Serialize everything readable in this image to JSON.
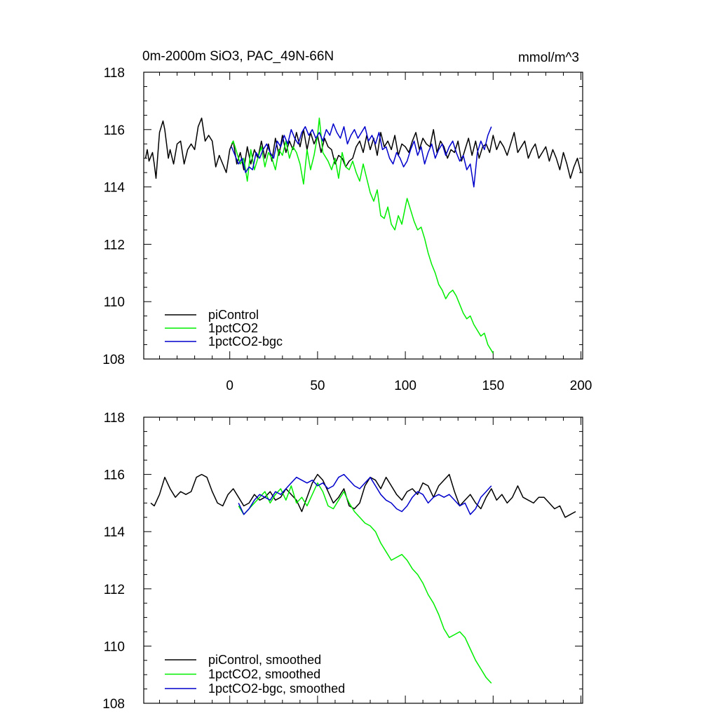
{
  "chart_data": [
    {
      "type": "line",
      "title": "0m-2000m SiO3, PAC_49N-66N",
      "units": "mmol/m^3",
      "xlim": [
        -49,
        201
      ],
      "ylim": [
        108,
        118
      ],
      "xticks": [
        0,
        50,
        100,
        150,
        200
      ],
      "xtick_labels": [
        "0",
        "50",
        "100",
        "150",
        "200"
      ],
      "yticks": [
        108,
        110,
        112,
        114,
        116,
        118
      ],
      "ytick_labels": [
        "108",
        "110",
        "112",
        "114",
        "116",
        "118"
      ],
      "legend_position": "bottom-left",
      "series": [
        {
          "name": "piControl",
          "color": "#000000",
          "x": [
            -48,
            -47,
            -46,
            -44,
            -43,
            -42,
            -40,
            -38,
            -37,
            -35,
            -34,
            -32,
            -30,
            -28,
            -26,
            -24,
            -22,
            -20,
            -18,
            -16,
            -14,
            -12,
            -10,
            -8,
            -6,
            -4,
            -2,
            0,
            2,
            4,
            6,
            8,
            10,
            12,
            14,
            16,
            18,
            20,
            22,
            24,
            26,
            28,
            30,
            32,
            34,
            36,
            38,
            40,
            42,
            44,
            46,
            48,
            50,
            52,
            54,
            56,
            58,
            60,
            62,
            64,
            66,
            68,
            70,
            72,
            74,
            76,
            78,
            80,
            82,
            84,
            86,
            88,
            90,
            92,
            94,
            96,
            98,
            100,
            102,
            104,
            106,
            108,
            110,
            112,
            114,
            116,
            118,
            120,
            122,
            124,
            126,
            128,
            130,
            132,
            134,
            136,
            138,
            140,
            142,
            144,
            146,
            148,
            150,
            152,
            154,
            156,
            158,
            160,
            162,
            164,
            166,
            168,
            170,
            172,
            174,
            176,
            178,
            180,
            182,
            184,
            186,
            188,
            190,
            192,
            194,
            196,
            198,
            200
          ],
          "y": [
            115.0,
            115.3,
            114.9,
            115.2,
            114.8,
            114.3,
            115.9,
            116.3,
            116.0,
            115.0,
            115.3,
            114.8,
            115.5,
            115.6,
            114.8,
            115.3,
            115.5,
            115.3,
            116.1,
            116.4,
            115.6,
            115.8,
            115.6,
            114.7,
            115.1,
            114.8,
            114.5,
            115.3,
            115.6,
            114.8,
            115.2,
            114.6,
            115.4,
            114.8,
            115.3,
            115.0,
            115.6,
            115.0,
            115.5,
            114.9,
            115.7,
            115.1,
            115.8,
            115.2,
            115.6,
            115.3,
            115.9,
            115.4,
            116.0,
            115.3,
            115.9,
            115.5,
            115.8,
            115.2,
            115.7,
            115.4,
            115.3,
            114.8,
            115.1,
            115.0,
            114.7,
            114.9,
            115.0,
            115.4,
            115.6,
            115.2,
            115.8,
            115.3,
            115.7,
            115.1,
            115.9,
            115.4,
            115.6,
            115.3,
            115.8,
            115.1,
            115.5,
            115.4,
            115.2,
            115.6,
            115.9,
            115.3,
            115.7,
            115.5,
            115.4,
            116.0,
            115.2,
            115.6,
            115.4,
            115.0,
            115.3,
            115.2,
            115.6,
            114.9,
            115.3,
            115.7,
            115.1,
            115.6,
            115.0,
            115.4,
            115.5,
            115.2,
            115.8,
            115.3,
            115.6,
            115.4,
            115.1,
            115.5,
            115.9,
            115.2,
            115.4,
            115.6,
            115.0,
            115.3,
            115.5,
            115.0,
            115.2,
            115.4,
            114.9,
            115.3,
            115.0,
            114.6,
            115.2,
            114.8,
            114.3,
            114.7,
            115.0,
            114.5
          ],
          "line_width": 1.5
        },
        {
          "name": "1pctCO2",
          "color": "#00ee00",
          "x": [
            1,
            2,
            4,
            6,
            8,
            10,
            12,
            14,
            16,
            18,
            20,
            22,
            24,
            26,
            28,
            30,
            32,
            34,
            36,
            38,
            40,
            42,
            44,
            46,
            48,
            50,
            51,
            53,
            56,
            58,
            60,
            62,
            64,
            66,
            68,
            70,
            72,
            74,
            76,
            78,
            80,
            82,
            84,
            86,
            88,
            90,
            92,
            94,
            96,
            98,
            100,
            101,
            103,
            105,
            107,
            109,
            111,
            113,
            115,
            117,
            119,
            121,
            123,
            125,
            127,
            129,
            131,
            133,
            135,
            137,
            139,
            141,
            143,
            145,
            147,
            149,
            150
          ],
          "y": [
            115.5,
            115.6,
            115.2,
            114.8,
            115.0,
            114.2,
            115.3,
            114.6,
            115.0,
            115.4,
            114.7,
            115.2,
            115.0,
            114.6,
            115.3,
            115.1,
            115.6,
            115.0,
            115.4,
            115.2,
            114.8,
            114.1,
            115.3,
            114.6,
            115.1,
            115.8,
            116.4,
            115.2,
            114.9,
            114.6,
            115.0,
            114.3,
            115.2,
            114.7,
            114.6,
            114.9,
            114.5,
            114.2,
            114.8,
            114.3,
            113.8,
            113.5,
            113.9,
            113.0,
            112.9,
            113.3,
            112.7,
            112.5,
            113.0,
            112.7,
            113.3,
            113.6,
            113.2,
            112.8,
            112.5,
            112.6,
            112.2,
            111.7,
            111.3,
            111.0,
            110.6,
            110.4,
            110.1,
            110.3,
            110.4,
            110.2,
            109.9,
            109.6,
            109.4,
            109.5,
            109.2,
            109.0,
            108.8,
            108.9,
            108.5,
            108.3,
            108.2
          ],
          "line_width": 1.5
        },
        {
          "name": "1pctCO2-bgc",
          "color": "#0000cc",
          "x": [
            1,
            3,
            5,
            7,
            9,
            11,
            13,
            15,
            17,
            19,
            21,
            23,
            25,
            27,
            29,
            31,
            33,
            35,
            37,
            39,
            41,
            43,
            45,
            47,
            49,
            51,
            53,
            55,
            57,
            59,
            61,
            63,
            65,
            67,
            69,
            71,
            73,
            75,
            77,
            79,
            81,
            83,
            85,
            87,
            89,
            91,
            93,
            95,
            97,
            99,
            101,
            103,
            105,
            107,
            109,
            111,
            113,
            115,
            117,
            119,
            121,
            123,
            125,
            127,
            129,
            131,
            133,
            135,
            137,
            139,
            141,
            143,
            145,
            147,
            149
          ],
          "y": [
            115.4,
            115.1,
            114.8,
            115.0,
            114.5,
            114.7,
            114.6,
            115.2,
            115.0,
            115.3,
            115.5,
            115.2,
            115.0,
            115.6,
            115.4,
            115.8,
            115.5,
            116.0,
            115.7,
            115.5,
            115.9,
            116.1,
            115.8,
            116.0,
            115.7,
            115.9,
            115.6,
            116.0,
            115.8,
            116.2,
            115.9,
            115.7,
            116.1,
            115.5,
            115.8,
            116.0,
            115.7,
            115.9,
            116.1,
            115.6,
            115.8,
            115.5,
            115.9,
            115.3,
            115.4,
            115.0,
            114.8,
            115.2,
            115.0,
            114.7,
            114.9,
            115.3,
            115.6,
            115.1,
            115.4,
            114.8,
            115.2,
            115.5,
            115.0,
            115.3,
            115.5,
            115.1,
            115.4,
            115.6,
            115.2,
            114.9,
            115.1,
            114.6,
            114.8,
            114.0,
            115.2,
            115.6,
            115.3,
            115.8,
            116.1
          ],
          "line_width": 1.5
        }
      ]
    },
    {
      "type": "line",
      "title": "",
      "units": "",
      "xlim": [
        -49,
        201
      ],
      "ylim": [
        108,
        118
      ],
      "xticks": [
        0,
        50,
        100,
        150,
        200
      ],
      "xtick_labels": [],
      "yticks": [
        108,
        110,
        112,
        114,
        116,
        118
      ],
      "ytick_labels": [
        "108",
        "110",
        "112",
        "114",
        "116",
        "118"
      ],
      "legend_position": "bottom-left",
      "series": [
        {
          "name": "piControl, smoothed",
          "color": "#000000",
          "x": [
            -45,
            -43,
            -40,
            -37,
            -34,
            -31,
            -28,
            -25,
            -22,
            -19,
            -16,
            -13,
            -10,
            -7,
            -4,
            -1,
            2,
            5,
            8,
            11,
            14,
            17,
            20,
            23,
            26,
            29,
            32,
            35,
            38,
            41,
            44,
            47,
            50,
            53,
            56,
            59,
            62,
            65,
            68,
            71,
            74,
            77,
            80,
            83,
            86,
            89,
            92,
            95,
            98,
            101,
            104,
            107,
            110,
            113,
            116,
            119,
            122,
            125,
            128,
            131,
            134,
            137,
            140,
            143,
            146,
            149,
            152,
            155,
            158,
            161,
            164,
            167,
            170,
            173,
            176,
            179,
            182,
            185,
            188,
            191,
            194,
            197
          ],
          "y": [
            115.0,
            114.9,
            115.3,
            115.9,
            115.5,
            115.2,
            115.4,
            115.3,
            115.4,
            115.9,
            116.0,
            115.9,
            115.4,
            115.0,
            114.9,
            115.3,
            115.5,
            115.2,
            114.9,
            115.0,
            115.3,
            115.1,
            115.2,
            115.4,
            115.1,
            115.2,
            115.5,
            115.3,
            115.1,
            114.7,
            115.2,
            115.7,
            116.0,
            115.8,
            115.4,
            115.0,
            115.2,
            115.5,
            114.9,
            114.8,
            115.0,
            115.6,
            115.9,
            115.8,
            115.5,
            115.9,
            115.6,
            115.3,
            115.1,
            115.4,
            115.5,
            115.3,
            115.7,
            115.6,
            115.2,
            115.6,
            115.8,
            116.0,
            115.4,
            114.9,
            115.1,
            115.3,
            115.0,
            114.8,
            115.2,
            115.5,
            115.1,
            115.3,
            115.0,
            115.2,
            115.6,
            115.2,
            115.1,
            115.0,
            115.2,
            115.2,
            115.0,
            114.8,
            114.9,
            114.5,
            114.6,
            114.7
          ],
          "line_width": 1.5
        },
        {
          "name": "1pctCO2, smoothed",
          "color": "#00ee00",
          "x": [
            5,
            8,
            11,
            14,
            17,
            20,
            23,
            26,
            29,
            32,
            35,
            38,
            41,
            44,
            47,
            50,
            53,
            56,
            59,
            62,
            65,
            68,
            71,
            74,
            77,
            80,
            83,
            86,
            89,
            92,
            95,
            98,
            101,
            104,
            107,
            110,
            113,
            116,
            119,
            122,
            125,
            128,
            131,
            134,
            137,
            140,
            143,
            146,
            149
          ],
          "y": [
            114.9,
            114.6,
            114.8,
            115.0,
            115.2,
            115.4,
            115.0,
            115.3,
            115.5,
            115.1,
            115.6,
            115.0,
            115.2,
            114.9,
            115.3,
            115.7,
            115.4,
            114.9,
            114.8,
            115.1,
            115.4,
            115.0,
            114.7,
            114.5,
            114.3,
            114.2,
            114.0,
            113.6,
            113.3,
            113.0,
            113.1,
            113.2,
            113.0,
            112.7,
            112.5,
            112.2,
            111.8,
            111.5,
            111.1,
            110.6,
            110.3,
            110.4,
            110.5,
            110.3,
            109.9,
            109.5,
            109.2,
            108.9,
            108.7
          ],
          "line_width": 1.5
        },
        {
          "name": "1pctCO2-bgc, smoothed",
          "color": "#0000cc",
          "x": [
            5,
            8,
            11,
            14,
            17,
            20,
            23,
            26,
            29,
            32,
            35,
            38,
            41,
            44,
            47,
            50,
            53,
            56,
            59,
            62,
            65,
            68,
            71,
            74,
            77,
            80,
            83,
            86,
            89,
            92,
            95,
            98,
            101,
            104,
            107,
            110,
            113,
            116,
            119,
            122,
            125,
            128,
            131,
            134,
            137,
            140,
            143,
            146,
            149
          ],
          "y": [
            115.0,
            114.6,
            114.8,
            115.1,
            115.3,
            115.2,
            115.1,
            115.4,
            115.3,
            115.5,
            115.7,
            115.9,
            115.8,
            115.7,
            115.8,
            115.6,
            115.7,
            115.5,
            115.6,
            115.9,
            116.0,
            115.8,
            115.6,
            115.5,
            115.7,
            115.9,
            115.6,
            115.3,
            115.1,
            115.0,
            114.8,
            114.7,
            114.9,
            115.2,
            115.4,
            115.3,
            115.0,
            115.2,
            115.3,
            115.2,
            115.3,
            115.1,
            114.9,
            115.0,
            114.6,
            114.8,
            115.2,
            115.4,
            115.6
          ],
          "line_width": 1.5
        }
      ]
    }
  ]
}
